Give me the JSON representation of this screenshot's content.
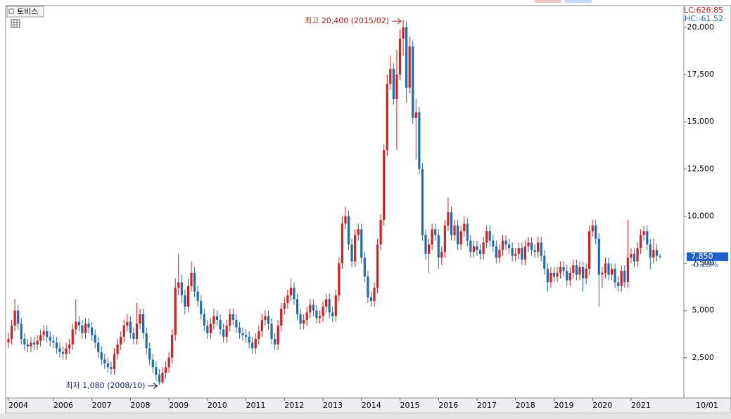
{
  "chart_data": {
    "type": "candlestick",
    "title": "토비스",
    "lc_label": "LC:626.85",
    "hc_label": "HC:-61.52",
    "last_price": {
      "value": 7850,
      "label": "7,850"
    },
    "change_label": "-0.25%",
    "date_label": "10/01",
    "annotations": {
      "high": "최고 20,400 (2015/02)",
      "low": "최저 1,080 (2008/10)"
    },
    "high_index": 123,
    "low_index": 47,
    "up_color": "#d42020",
    "down_color": "#1f6bb0",
    "grid": false,
    "ylim": [
      370,
      21150
    ],
    "yticks": [
      {
        "value": 2500,
        "label": "2,500"
      },
      {
        "value": 5000,
        "label": "5,000"
      },
      {
        "value": 7500,
        "label": "7,500"
      },
      {
        "value": 10000,
        "label": "10,000"
      },
      {
        "value": 12500,
        "label": "12,500"
      },
      {
        "value": 15000,
        "label": "15,000"
      },
      {
        "value": 17500,
        "label": "17,500"
      },
      {
        "value": 20000,
        "label": "20,000"
      }
    ],
    "xlim": [
      0,
      203
    ],
    "xticks": [
      {
        "value": 0,
        "label": "2004"
      },
      {
        "value": 14,
        "label": "2006"
      },
      {
        "value": 26,
        "label": "2007"
      },
      {
        "value": 38,
        "label": "2008"
      },
      {
        "value": 50,
        "label": "2009"
      },
      {
        "value": 62,
        "label": "2010"
      },
      {
        "value": 74,
        "label": "2011"
      },
      {
        "value": 86,
        "label": "2012"
      },
      {
        "value": 98,
        "label": "2013"
      },
      {
        "value": 110,
        "label": "2014"
      },
      {
        "value": 122,
        "label": "2015"
      },
      {
        "value": 134,
        "label": "2016"
      },
      {
        "value": 146,
        "label": "2017"
      },
      {
        "value": 158,
        "label": "2018"
      },
      {
        "value": 170,
        "label": "2019"
      },
      {
        "value": 182,
        "label": "2020"
      },
      {
        "value": 194,
        "label": "2021"
      }
    ],
    "open": [
      3300,
      3500,
      4200,
      5000,
      4300,
      3500,
      3200,
      3100,
      3300,
      3200,
      3400,
      3700,
      3900,
      3600,
      3400,
      3300,
      3000,
      2800,
      2700,
      3000,
      3200,
      4000,
      4400,
      4200,
      3800,
      4300,
      4100,
      3700,
      3300,
      2800,
      2400,
      2200,
      2000,
      1900,
      2700,
      3200,
      3600,
      4200,
      4400,
      3800,
      3500,
      4300,
      4800,
      3800,
      3000,
      2400,
      2000,
      1600,
      1200,
      1700,
      2000,
      2500,
      3700,
      6200,
      6500,
      5800,
      5200,
      6300,
      7000,
      6000,
      5500,
      4800,
      4200,
      3800,
      4300,
      4700,
      4500,
      4000,
      3600,
      4200,
      4800,
      4500,
      4100,
      3800,
      3700,
      3600,
      3300,
      3000,
      3500,
      3900,
      4500,
      4700,
      4300,
      3500,
      3200,
      4200,
      5100,
      5400,
      5800,
      6200,
      5600,
      4800,
      4300,
      4500,
      4900,
      5300,
      5000,
      4600,
      4700,
      5200,
      5600,
      4900,
      4700,
      5800,
      7500,
      9600,
      10000,
      8500,
      7600,
      9000,
      9300,
      7800,
      6800,
      5700,
      5500,
      6200,
      8500,
      9800,
      13500,
      17000,
      17800,
      16200,
      17500,
      19400,
      20000,
      16800,
      19000,
      15200,
      15500,
      12500,
      9000,
      8000,
      8500,
      9300,
      9000,
      7800,
      8100,
      9500,
      10200,
      9000,
      9500,
      8500,
      9200,
      9600,
      8700,
      8100,
      8400,
      8200,
      8000,
      8600,
      9200,
      8700,
      8400,
      7800,
      8200,
      8700,
      8500,
      8300,
      7900,
      8000,
      8300,
      7700,
      8400,
      8600,
      8200,
      8100,
      8600,
      7900,
      7200,
      6500,
      7000,
      6800,
      7000,
      7300,
      7100,
      6600,
      7000,
      7400,
      6900,
      7300,
      6700,
      7200,
      9200,
      9500,
      8800,
      6900,
      7000,
      7500,
      6900,
      7200,
      6500,
      6300,
      7100,
      6500,
      7800,
      8000,
      7600,
      8300,
      9000,
      9200,
      8500,
      7800,
      8200,
      7900
    ],
    "high": [
      3800,
      4500,
      5600,
      5300,
      4600,
      3800,
      3500,
      3600,
      3600,
      3700,
      4000,
      4200,
      4200,
      3900,
      3700,
      3600,
      3300,
      3100,
      3300,
      3500,
      4300,
      5600,
      4700,
      4500,
      4600,
      4600,
      4400,
      4000,
      3600,
      3100,
      2700,
      2500,
      2300,
      3000,
      3500,
      3900,
      4500,
      4800,
      4700,
      4100,
      5400,
      5100,
      5100,
      4100,
      3300,
      2700,
      2300,
      1900,
      2000,
      2300,
      2800,
      4000,
      6700,
      8000,
      6900,
      6100,
      6700,
      7600,
      7300,
      6300,
      5800,
      5100,
      4500,
      4600,
      5100,
      5000,
      4800,
      4300,
      4500,
      5100,
      5100,
      4800,
      4400,
      4100,
      4000,
      3900,
      3600,
      3800,
      4200,
      4800,
      5000,
      5000,
      4600,
      3800,
      4500,
      5400,
      5700,
      6100,
      6700,
      6500,
      5900,
      5100,
      4800,
      5200,
      5600,
      5600,
      5300,
      5000,
      5500,
      5900,
      5900,
      5200,
      6100,
      7800,
      10000,
      10500,
      10300,
      8800,
      9300,
      9600,
      9600,
      8100,
      7100,
      6000,
      6500,
      8800,
      10100,
      13800,
      17500,
      18500,
      18100,
      18800,
      19900,
      20400,
      20300,
      19500,
      19300,
      16200,
      15800,
      12800,
      9300,
      8800,
      9600,
      9600,
      9300,
      8400,
      9800,
      11000,
      10500,
      9800,
      9800,
      9500,
      10000,
      9900,
      9000,
      8700,
      8700,
      8500,
      8900,
      9500,
      9500,
      9000,
      8700,
      8500,
      9000,
      9000,
      8800,
      8600,
      8300,
      8600,
      8600,
      8700,
      8900,
      8900,
      8500,
      8900,
      8900,
      8200,
      7500,
      7300,
      7300,
      7300,
      7600,
      7600,
      7400,
      7300,
      7700,
      7700,
      7600,
      7600,
      7500,
      9500,
      9800,
      9800,
      9100,
      7300,
      7800,
      7800,
      7500,
      7500,
      6800,
      7400,
      7400,
      9800,
      8300,
      8300,
      8600,
      9300,
      9500,
      9500,
      8800,
      8800,
      8500,
      8000
    ],
    "low": [
      3000,
      3200,
      3900,
      4000,
      3200,
      2900,
      2800,
      2800,
      2900,
      2900,
      3100,
      3400,
      3300,
      3100,
      3000,
      2700,
      2500,
      2400,
      2400,
      2700,
      2900,
      3700,
      3900,
      3500,
      3500,
      3800,
      3400,
      3000,
      2500,
      2100,
      1900,
      1700,
      1600,
      1600,
      2400,
      2900,
      3300,
      3900,
      3500,
      3200,
      3200,
      4000,
      3500,
      2700,
      2100,
      1700,
      1300,
      1080,
      1100,
      1400,
      1700,
      2200,
      3400,
      5800,
      5400,
      4800,
      4900,
      6000,
      5700,
      5200,
      4500,
      3900,
      3500,
      3500,
      4000,
      4200,
      3700,
      3300,
      3300,
      3900,
      4200,
      3800,
      3500,
      3400,
      3300,
      3000,
      2700,
      2700,
      3200,
      3600,
      4200,
      4000,
      3200,
      2900,
      2900,
      3900,
      4800,
      5100,
      5500,
      5300,
      4500,
      4000,
      4000,
      4200,
      4600,
      4700,
      4300,
      4300,
      4400,
      4900,
      4600,
      4400,
      4400,
      5500,
      7200,
      9300,
      8200,
      7300,
      7300,
      8700,
      7500,
      6500,
      5400,
      5200,
      5200,
      5900,
      8200,
      9500,
      13200,
      16700,
      15900,
      13500,
      17200,
      18500,
      16000,
      16500,
      14900,
      13000,
      12200,
      8700,
      7700,
      7000,
      8200,
      8700,
      7200,
      7400,
      7800,
      9200,
      8700,
      8700,
      8200,
      8200,
      8900,
      8400,
      7800,
      7800,
      7900,
      7700,
      7700,
      8300,
      8400,
      8100,
      7500,
      7500,
      7900,
      8200,
      8000,
      7600,
      7600,
      7700,
      7400,
      7400,
      8100,
      7900,
      7800,
      7800,
      7600,
      6900,
      6000,
      6200,
      6500,
      6500,
      6700,
      6800,
      6300,
      6300,
      6700,
      6600,
      6600,
      6000,
      6400,
      6900,
      8900,
      8500,
      5200,
      6200,
      6700,
      6600,
      6600,
      6200,
      6000,
      6000,
      6200,
      6200,
      7500,
      7300,
      7300,
      8000,
      8700,
      8200,
      7200,
      7500,
      7600,
      7750
    ],
    "close": [
      3500,
      4200,
      5000,
      4300,
      3500,
      3200,
      3100,
      3300,
      3200,
      3400,
      3700,
      3900,
      3600,
      3400,
      3300,
      3000,
      2800,
      2700,
      3000,
      3200,
      4000,
      4400,
      4200,
      3800,
      4300,
      4100,
      3700,
      3300,
      2800,
      2400,
      2200,
      2000,
      1900,
      2700,
      3200,
      3600,
      4200,
      4400,
      3800,
      3500,
      4300,
      4800,
      3800,
      3000,
      2400,
      2000,
      1600,
      1200,
      1700,
      2000,
      2500,
      3700,
      6200,
      6500,
      5800,
      5200,
      6300,
      7000,
      6000,
      5500,
      4800,
      4200,
      3800,
      4300,
      4700,
      4500,
      4000,
      3600,
      4200,
      4800,
      4500,
      4100,
      3800,
      3700,
      3600,
      3300,
      3000,
      3500,
      3900,
      4500,
      4700,
      4300,
      3500,
      3200,
      4200,
      5100,
      5400,
      5800,
      6200,
      5600,
      4800,
      4300,
      4500,
      4900,
      5300,
      5000,
      4600,
      4700,
      5200,
      5600,
      4900,
      4700,
      5800,
      7500,
      9600,
      10000,
      8500,
      7600,
      9000,
      9300,
      7800,
      6800,
      5700,
      5500,
      6200,
      8500,
      9800,
      13500,
      17000,
      17800,
      16200,
      17500,
      19400,
      20000,
      16800,
      19000,
      15200,
      15500,
      12500,
      9000,
      8000,
      8500,
      9300,
      9000,
      7800,
      8100,
      9500,
      10200,
      9000,
      9500,
      8500,
      9200,
      9600,
      8700,
      8100,
      8400,
      8200,
      8000,
      8600,
      9200,
      8700,
      8400,
      7800,
      8200,
      8700,
      8500,
      8300,
      7900,
      8000,
      8300,
      7700,
      8400,
      8600,
      8200,
      8100,
      8600,
      7900,
      7200,
      6500,
      7000,
      6800,
      7000,
      7300,
      7100,
      6600,
      7000,
      7400,
      6900,
      7300,
      6700,
      7200,
      9200,
      9500,
      8800,
      6900,
      7000,
      7500,
      6900,
      7200,
      6500,
      6300,
      7100,
      6500,
      7800,
      8000,
      7600,
      8300,
      9000,
      9200,
      8500,
      7800,
      8200,
      7900,
      7850
    ]
  }
}
